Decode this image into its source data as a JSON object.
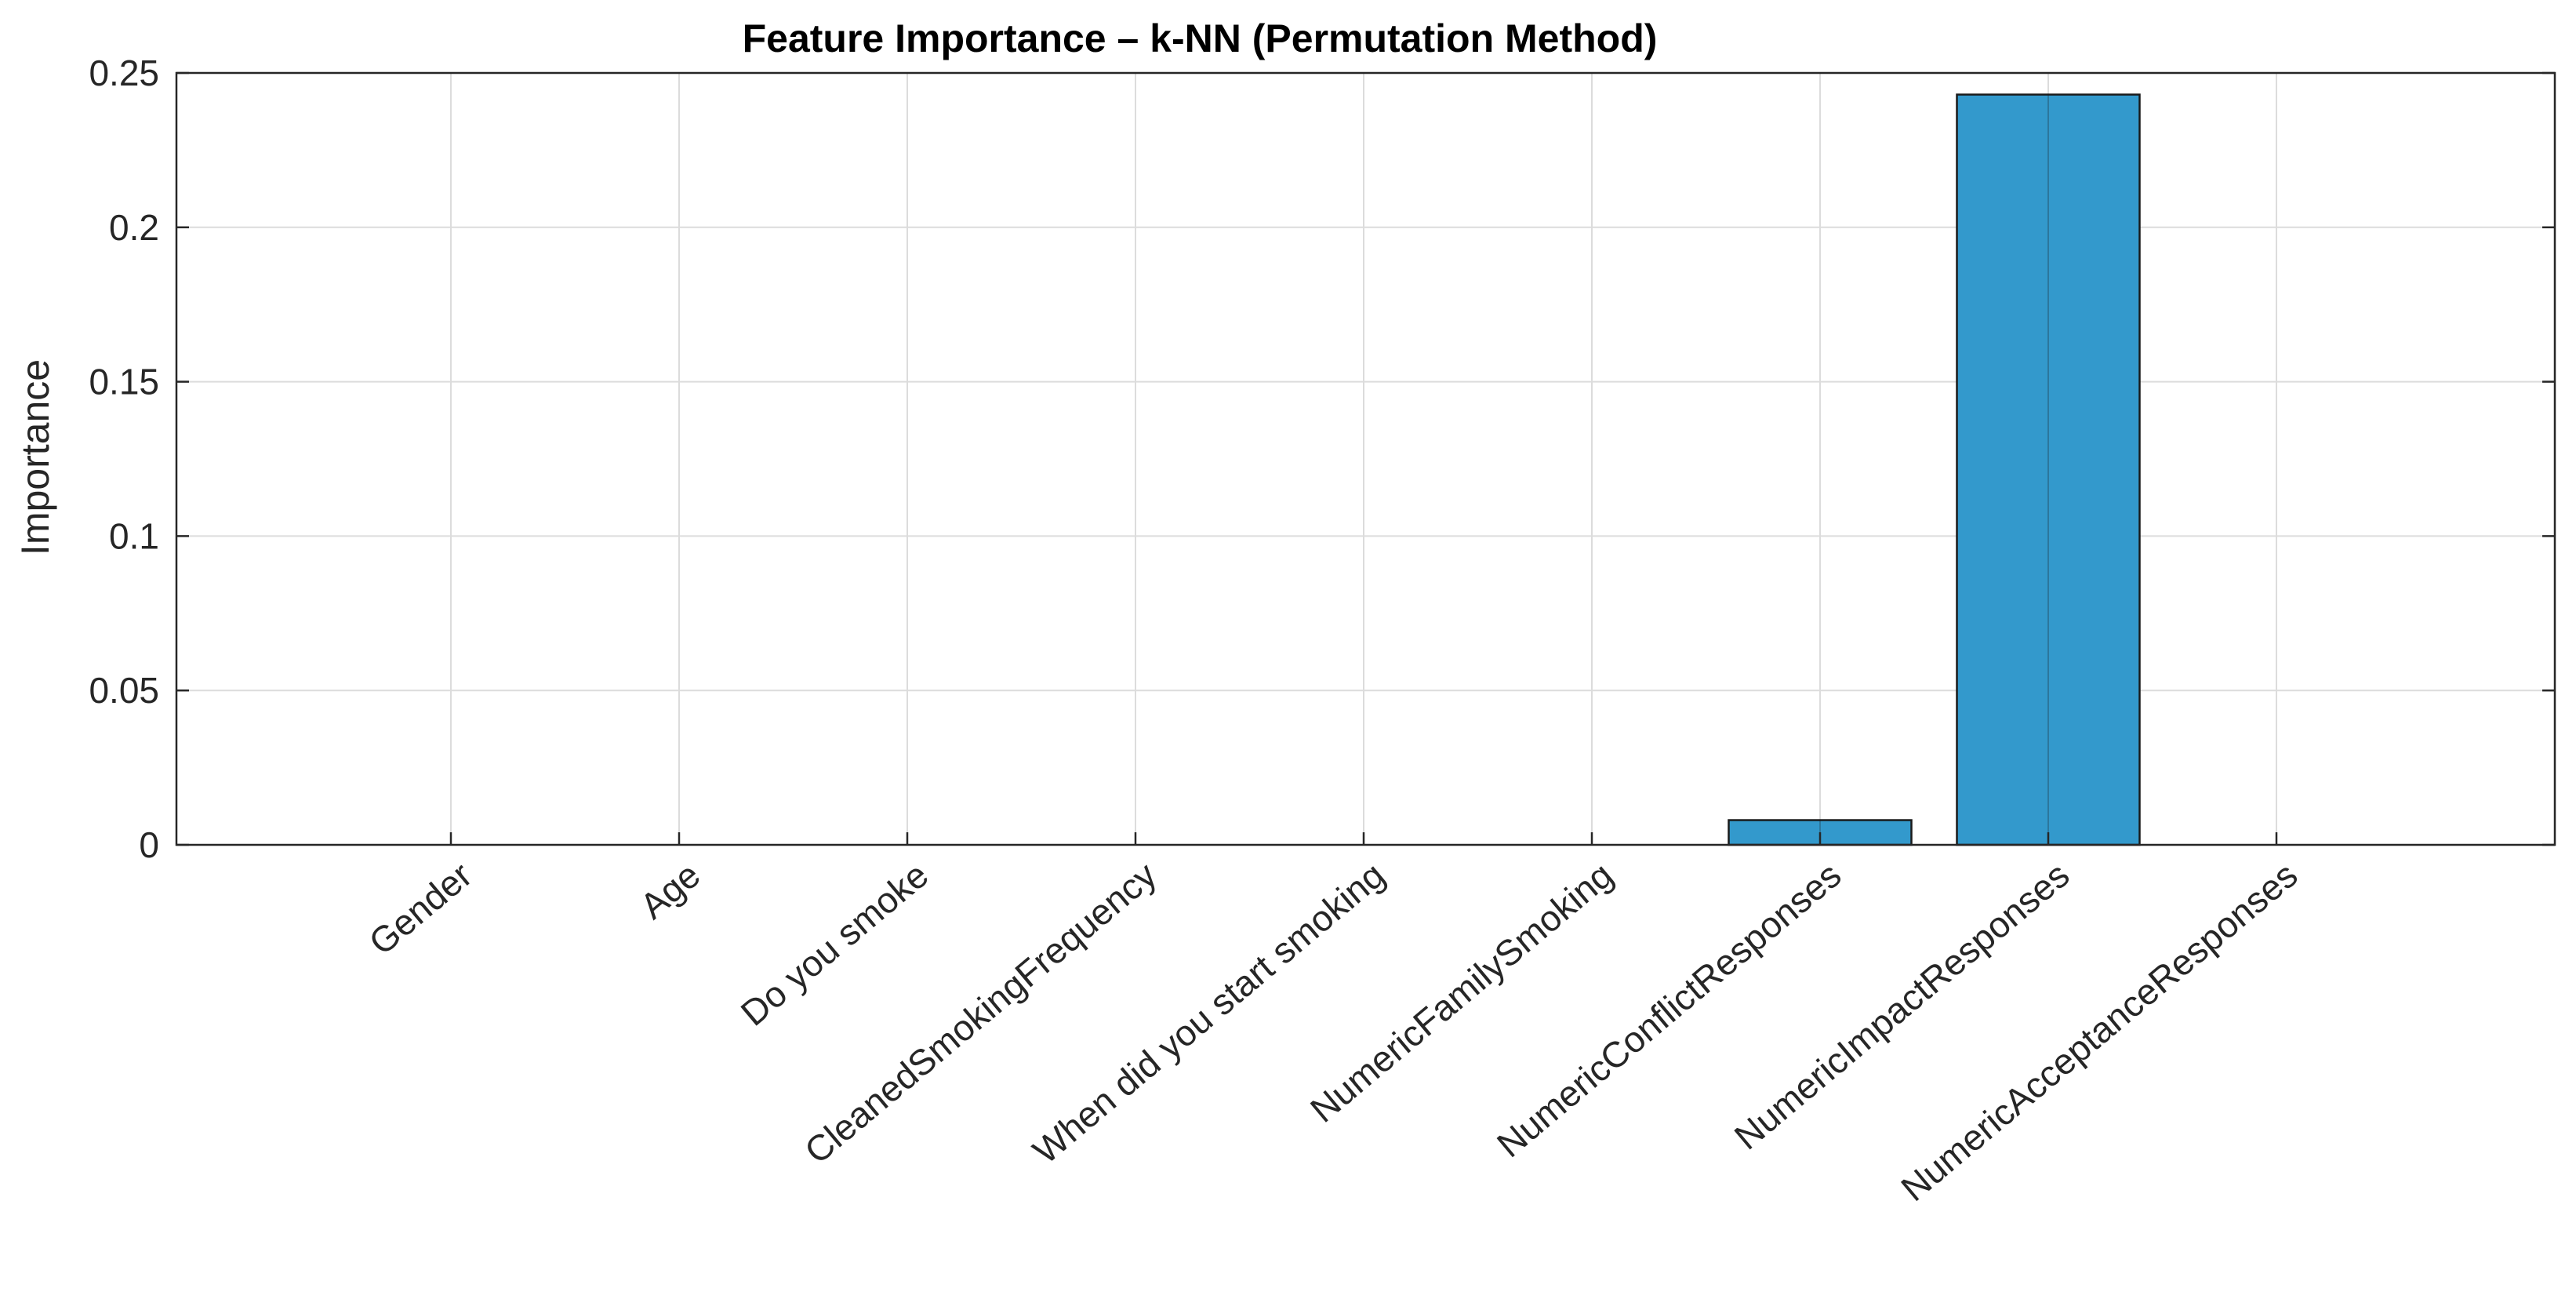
{
  "chart_data": {
    "type": "bar",
    "title": "Feature Importance – k-NN (Permutation Method)",
    "xlabel": "",
    "ylabel": "Importance",
    "categories": [
      "Gender",
      "Age",
      "Do you smoke",
      "CleanedSmokingFrequency",
      "When did you start smoking",
      "NumericFamilySmoking",
      "NumericConflictResponses",
      "NumericImpactResponses",
      "NumericAcceptanceResponses"
    ],
    "values": [
      0,
      0,
      0,
      0,
      0,
      0,
      0.008,
      0.243,
      0
    ],
    "ylim": [
      0,
      0.25
    ],
    "yticks": [
      0,
      0.05,
      0.1,
      0.15,
      0.2,
      0.25
    ],
    "ytick_labels": [
      "0",
      "0.05",
      "0.1",
      "0.15",
      "0.2",
      "0.25"
    ],
    "grid": true,
    "bar_color": "#3399CC",
    "edge_color": "#1a1a1a"
  }
}
